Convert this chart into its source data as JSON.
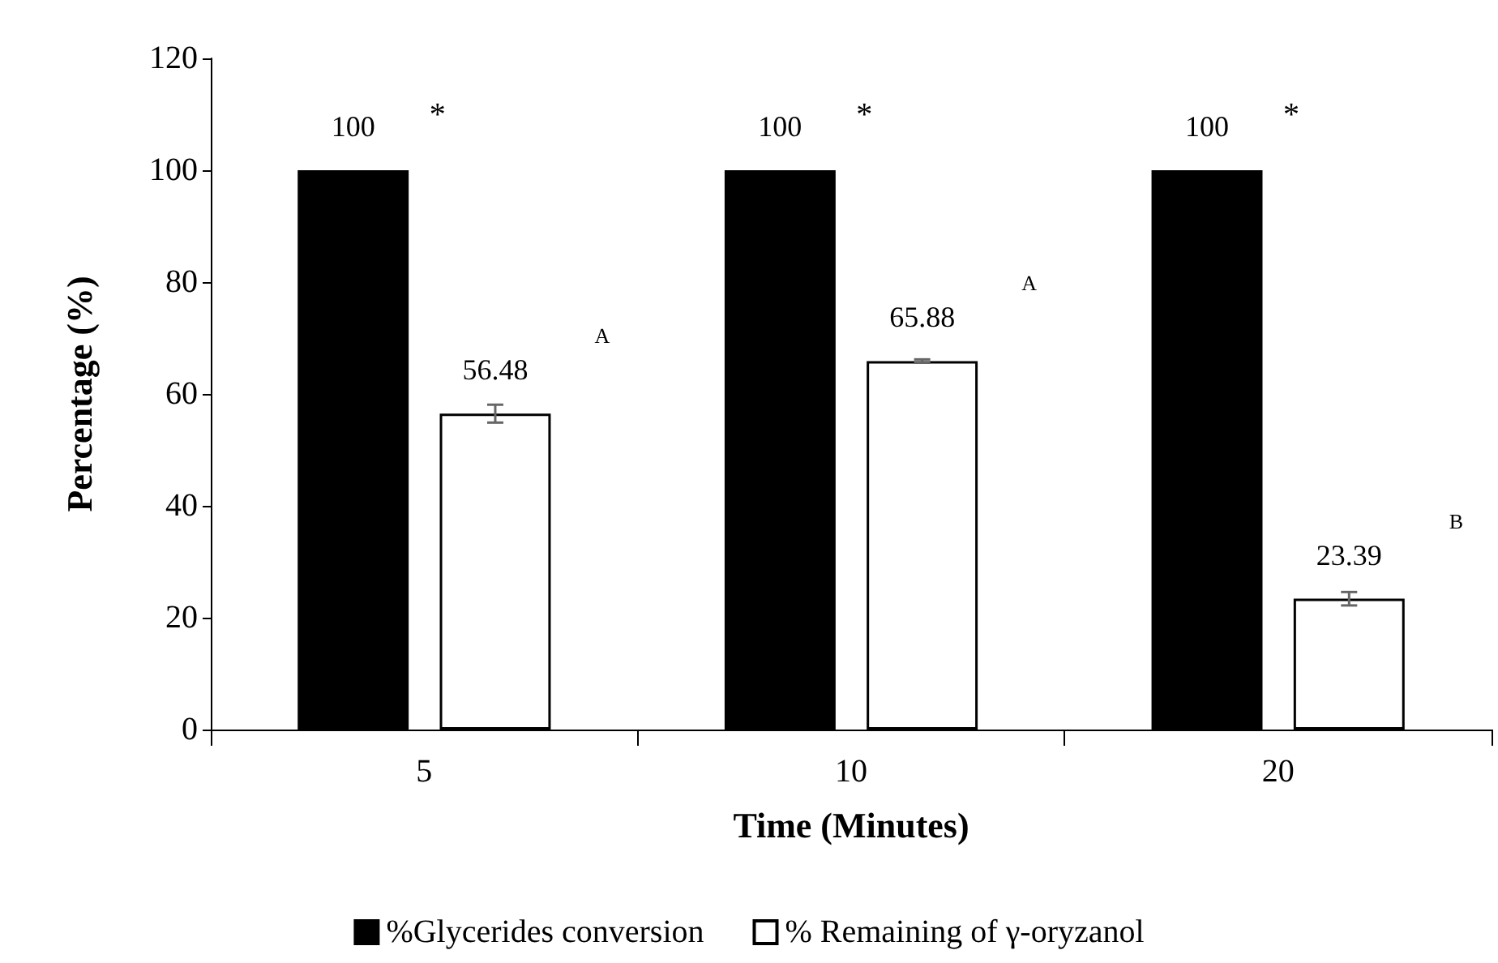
{
  "chart_data": {
    "type": "bar",
    "xlabel": "Time (Minutes)",
    "ylabel": "Percentage (%)",
    "categories": [
      "5",
      "10",
      "20"
    ],
    "series": [
      {
        "name": "%Glycerides conversion",
        "color": "#000000",
        "values": [
          100,
          100,
          100
        ]
      },
      {
        "name": "% Remaining of γ-oryzanol",
        "color": "#ffffff",
        "values": [
          56.48,
          65.88,
          23.39
        ],
        "errors": [
          1.6,
          0.3,
          1.2
        ]
      }
    ],
    "ylim": [
      0,
      120
    ],
    "yticks": [
      0,
      20,
      40,
      60,
      80,
      100,
      120
    ],
    "grid": false,
    "legend": "bottom",
    "data_labels": true,
    "annotations": [
      "*",
      "*",
      "*",
      "A",
      "A",
      "B"
    ]
  }
}
